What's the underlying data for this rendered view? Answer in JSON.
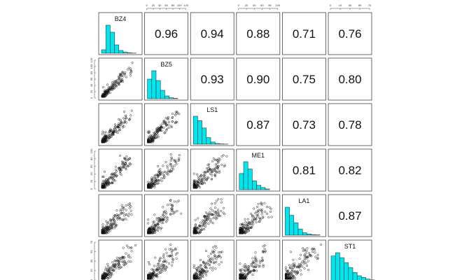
{
  "chart_data": {
    "type": "scatter-matrix",
    "variables": [
      "BZ4",
      "BZ5",
      "LS1",
      "ME1",
      "LA1",
      "ST1"
    ],
    "correlations": [
      {
        "row": 0,
        "col": 1,
        "value": "0.96"
      },
      {
        "row": 0,
        "col": 2,
        "value": "0.94"
      },
      {
        "row": 0,
        "col": 3,
        "value": "0.88"
      },
      {
        "row": 0,
        "col": 4,
        "value": "0.71"
      },
      {
        "row": 0,
        "col": 5,
        "value": "0.76"
      },
      {
        "row": 1,
        "col": 2,
        "value": "0.93"
      },
      {
        "row": 1,
        "col": 3,
        "value": "0.90"
      },
      {
        "row": 1,
        "col": 4,
        "value": "0.75"
      },
      {
        "row": 1,
        "col": 5,
        "value": "0.80"
      },
      {
        "row": 2,
        "col": 3,
        "value": "0.87"
      },
      {
        "row": 2,
        "col": 4,
        "value": "0.73"
      },
      {
        "row": 2,
        "col": 5,
        "value": "0.78"
      },
      {
        "row": 3,
        "col": 4,
        "value": "0.81"
      },
      {
        "row": 3,
        "col": 5,
        "value": "0.82"
      },
      {
        "row": 4,
        "col": 5,
        "value": "0.87"
      }
    ],
    "histograms": [
      {
        "variable": "BZ4",
        "values": [
          5,
          40,
          30,
          12,
          4,
          1.5,
          0.6,
          0.2
        ]
      },
      {
        "variable": "BZ5",
        "values": [
          28,
          40,
          26,
          12,
          4,
          1.5,
          0.5
        ]
      },
      {
        "variable": "LS1",
        "values": [
          38,
          32,
          22,
          9,
          3,
          1,
          0.4,
          0.2
        ]
      },
      {
        "variable": "ME1",
        "values": [
          22,
          38,
          28,
          12,
          6,
          3,
          1
        ]
      },
      {
        "variable": "LA1",
        "values": [
          45,
          32,
          20,
          10,
          4,
          2,
          1,
          0.5
        ]
      },
      {
        "variable": "ST1",
        "values": [
          30,
          34,
          28,
          22,
          16,
          10,
          6,
          4,
          2,
          1
        ]
      }
    ],
    "top_tick_labels": [
      {
        "col": 1,
        "ticks": [
          "0",
          "20",
          "40",
          "60",
          "80",
          "100",
          "120"
        ]
      },
      {
        "col": 3,
        "ticks": [
          "0",
          "20",
          "40",
          "60",
          "80",
          "100"
        ]
      },
      {
        "col": 5,
        "ticks": [
          "0",
          "10",
          "30",
          "50",
          "70"
        ]
      }
    ],
    "left_tick_labels": [
      {
        "row": 1,
        "ticks": [
          "0",
          "20",
          "40",
          "60",
          "80",
          "100",
          "120"
        ]
      },
      {
        "row": 3,
        "ticks": [
          "0",
          "20",
          "40",
          "60",
          "80",
          "100"
        ]
      },
      {
        "row": 5,
        "ticks": [
          "0",
          "10",
          "30",
          "50",
          "70"
        ]
      }
    ],
    "scatter_point_count": 180,
    "colors": {
      "histogram_fill": "#00e5ee",
      "point_stroke": "#111111",
      "frame": "#444444"
    }
  }
}
